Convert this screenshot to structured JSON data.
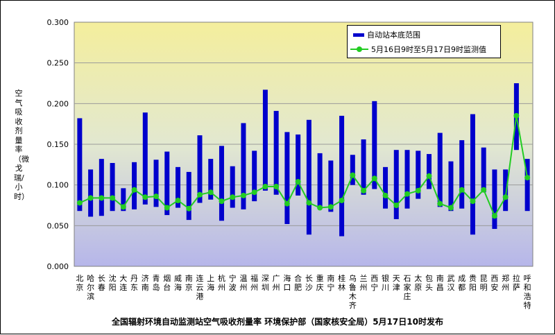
{
  "chart_data": {
    "type": "bar",
    "title": "全国辐射环境自动监测站空气吸收剂量率 环境保护部（国家核安全局）5月17日10时发布",
    "ylabel": "空气吸收剂量率（微戈瑞/小时）",
    "xlabel": "",
    "ylim": [
      0.0,
      0.3
    ],
    "yticks": [
      "0.000",
      "0.050",
      "0.100",
      "0.150",
      "0.200",
      "0.250",
      "0.300"
    ],
    "grid": true,
    "legend_position": "top-right",
    "categories": [
      "北京",
      "哈尔滨",
      "长春",
      "沈阳",
      "大连",
      "丹东",
      "济南",
      "青岛",
      "烟台",
      "威海",
      "南京",
      "连云港",
      "上海",
      "杭州",
      "宁波",
      "温州",
      "福州",
      "深圳",
      "广州",
      "海口",
      "合肥",
      "长沙",
      "重庆",
      "南宁",
      "桂林",
      "乌鲁木齐",
      "兰州",
      "西宁",
      "银川",
      "天津",
      "石家庄",
      "太原",
      "包头",
      "南昌",
      "武汉",
      "成都",
      "贵阳",
      "昆明",
      "西安",
      "郑州",
      "拉萨",
      "呼和浩特"
    ],
    "series": [
      {
        "name": "自动站本底范围",
        "kind": "range-bar",
        "color": "#0000cc",
        "low": [
          0.068,
          0.061,
          0.062,
          0.068,
          0.068,
          0.07,
          0.076,
          0.073,
          0.063,
          0.072,
          0.057,
          0.078,
          0.082,
          0.056,
          0.072,
          0.07,
          0.08,
          0.093,
          0.088,
          0.052,
          0.087,
          0.039,
          0.073,
          0.067,
          0.037,
          0.1,
          0.088,
          0.095,
          0.071,
          0.058,
          0.071,
          0.083,
          0.095,
          0.073,
          0.068,
          0.071,
          0.039,
          0.091,
          0.046,
          0.068,
          0.143,
          0.068
        ],
        "high": [
          0.182,
          0.119,
          0.132,
          0.127,
          0.096,
          0.128,
          0.189,
          0.131,
          0.141,
          0.122,
          0.116,
          0.161,
          0.132,
          0.148,
          0.123,
          0.176,
          0.142,
          0.217,
          0.191,
          0.165,
          0.162,
          0.18,
          0.139,
          0.13,
          0.185,
          0.137,
          0.156,
          0.203,
          0.122,
          0.143,
          0.143,
          0.142,
          0.138,
          0.164,
          0.129,
          0.155,
          0.187,
          0.146,
          0.119,
          0.119,
          0.225,
          0.132
        ]
      },
      {
        "name": "5月16日9时至5月17日9时监测值",
        "kind": "line",
        "color": "#22cc22",
        "values": [
          0.078,
          0.084,
          0.084,
          0.084,
          0.073,
          0.094,
          0.085,
          0.086,
          0.072,
          0.081,
          0.071,
          0.088,
          0.091,
          0.08,
          0.085,
          0.087,
          0.091,
          0.098,
          0.098,
          0.077,
          0.104,
          0.078,
          0.072,
          0.073,
          0.081,
          0.112,
          0.093,
          0.108,
          0.087,
          0.075,
          0.089,
          0.093,
          0.111,
          0.077,
          0.072,
          0.094,
          0.08,
          0.094,
          0.062,
          0.085,
          0.185,
          0.109
        ]
      }
    ]
  }
}
